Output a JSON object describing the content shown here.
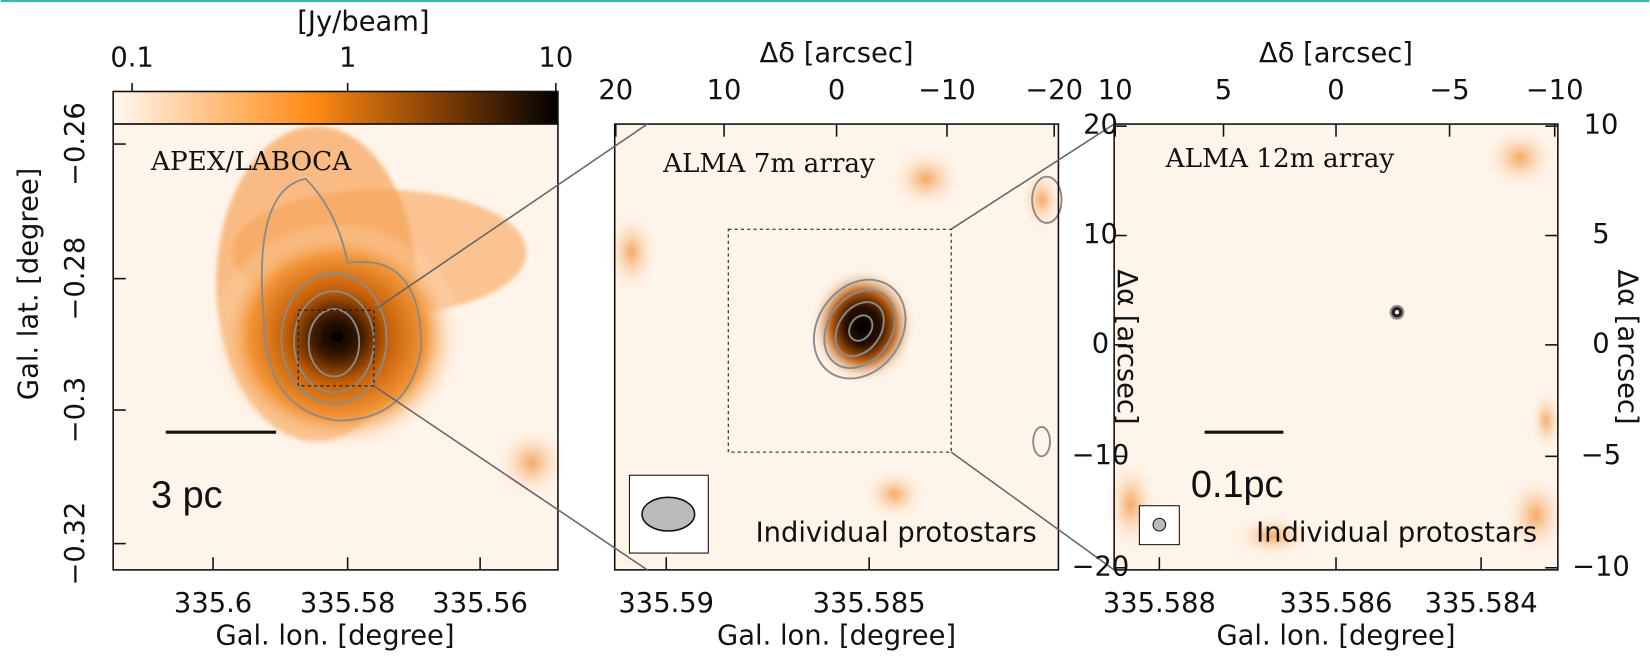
{
  "colorbar": {
    "label": "[Jy/beam]",
    "ticks": [
      "0.1",
      "1",
      "10"
    ]
  },
  "panels": [
    {
      "label": "APEX/LABOCA",
      "x_axis_label": "Gal. lon. [degree]",
      "x_ticks": [
        "335.6",
        "335.58",
        "335.56"
      ],
      "y_axis_label": "Gal. lat. [degree]",
      "y_ticks": [
        "−0.26",
        "−0.28",
        "−0.3",
        "−0.32"
      ],
      "scale_bar": "3 pc"
    },
    {
      "label": "ALMA 7m array",
      "top_axis_label": "Δδ [arcsec]",
      "top_ticks": [
        "20",
        "10",
        "0",
        "−10",
        "−20"
      ],
      "x_axis_label": "Gal. lon. [degree]",
      "x_ticks": [
        "335.59",
        "335.585"
      ],
      "note": "Individual protostars"
    },
    {
      "label": "ALMA 12m array",
      "top_axis_label": "Δδ [arcsec]",
      "top_ticks": [
        "10",
        "5",
        "0",
        "−5",
        "−10"
      ],
      "x_axis_label": "Gal. lon. [degree]",
      "x_ticks": [
        "335.588",
        "335.586",
        "335.584"
      ],
      "left_axis_label": "Δα [arcsec]",
      "left_ticks": [
        "20",
        "10",
        "0",
        "−10",
        "−20"
      ],
      "right_axis_label": "Δα [arcsec]",
      "right_ticks": [
        "10",
        "5",
        "0",
        "−5",
        "−10"
      ],
      "scale_bar": "0.1pc",
      "note": "Individual protostars"
    }
  ]
}
